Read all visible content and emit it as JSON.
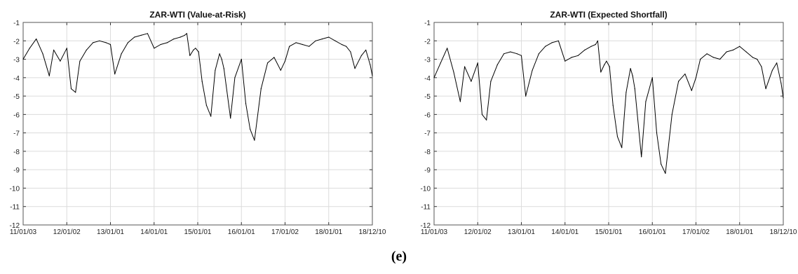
{
  "panel_label": "(e)",
  "chart_data": [
    {
      "type": "line",
      "title": "ZAR-WTI (Value-at-Risk)",
      "xlabel": "",
      "ylabel": "",
      "ylim": [
        -12,
        -1
      ],
      "yticks": [
        -1,
        -2,
        -3,
        -4,
        -5,
        -6,
        -7,
        -8,
        -9,
        -10,
        -11,
        -12
      ],
      "xtick_labels": [
        "11/01/03",
        "12/01/02",
        "13/01/01",
        "14/01/01",
        "15/01/01",
        "16/01/01",
        "17/01/02",
        "18/01/01",
        "18/12/10"
      ],
      "grid": true,
      "series": [
        {
          "x": [
            0,
            0.15,
            0.3,
            0.45,
            0.6,
            0.7,
            0.85,
            1.0,
            1.1,
            1.2,
            1.3,
            1.45,
            1.6,
            1.75,
            1.9,
            2.0,
            2.1,
            2.25,
            2.4,
            2.55,
            2.7,
            2.85,
            3.0,
            3.15,
            3.3,
            3.45,
            3.6,
            3.7,
            3.75,
            3.82,
            3.9,
            3.95,
            4.02,
            4.1,
            4.2,
            4.3,
            4.4,
            4.5,
            4.55,
            4.6,
            4.75,
            4.85,
            5.0,
            5.1,
            5.2,
            5.3,
            5.45,
            5.6,
            5.75,
            5.9,
            6.0,
            6.1,
            6.25,
            6.4,
            6.55,
            6.7,
            6.85,
            7.0,
            7.15,
            7.3,
            7.4,
            7.5,
            7.6,
            7.75,
            7.85,
            7.95,
            8.0
          ],
          "y": [
            -3.0,
            -2.4,
            -1.9,
            -2.7,
            -3.9,
            -2.5,
            -3.1,
            -2.4,
            -4.6,
            -4.8,
            -3.1,
            -2.5,
            -2.1,
            -2.0,
            -2.1,
            -2.2,
            -3.8,
            -2.7,
            -2.1,
            -1.8,
            -1.7,
            -1.6,
            -2.4,
            -2.2,
            -2.1,
            -1.9,
            -1.8,
            -1.7,
            -1.6,
            -2.8,
            -2.5,
            -2.4,
            -2.6,
            -4.2,
            -5.5,
            -6.1,
            -3.6,
            -2.7,
            -3.0,
            -3.5,
            -6.2,
            -4.0,
            -3.0,
            -5.4,
            -6.8,
            -7.4,
            -4.6,
            -3.2,
            -2.9,
            -3.6,
            -3.1,
            -2.3,
            -2.1,
            -2.2,
            -2.3,
            -2.0,
            -1.9,
            -1.8,
            -2.0,
            -2.2,
            -2.3,
            -2.6,
            -3.5,
            -2.8,
            -2.5,
            -3.3,
            -3.9
          ]
        }
      ]
    },
    {
      "type": "line",
      "title": "ZAR-WTI (Expected Shortfall)",
      "xlabel": "",
      "ylabel": "",
      "ylim": [
        -12,
        -1
      ],
      "yticks": [
        -1,
        -2,
        -3,
        -4,
        -5,
        -6,
        -7,
        -8,
        -9,
        -10,
        -11,
        -12
      ],
      "xtick_labels": [
        "11/01/03",
        "12/01/02",
        "13/01/01",
        "14/01/01",
        "15/01/01",
        "16/01/01",
        "17/01/02",
        "18/01/01",
        "18/12/10"
      ],
      "grid": true,
      "series": [
        {
          "x": [
            0,
            0.15,
            0.3,
            0.45,
            0.6,
            0.7,
            0.85,
            1.0,
            1.1,
            1.2,
            1.3,
            1.45,
            1.6,
            1.75,
            1.9,
            2.0,
            2.1,
            2.25,
            2.4,
            2.55,
            2.7,
            2.85,
            3.0,
            3.15,
            3.3,
            3.45,
            3.6,
            3.7,
            3.75,
            3.82,
            3.9,
            3.95,
            4.02,
            4.1,
            4.2,
            4.3,
            4.4,
            4.5,
            4.55,
            4.6,
            4.75,
            4.85,
            5.0,
            5.1,
            5.2,
            5.3,
            5.45,
            5.6,
            5.75,
            5.9,
            6.0,
            6.1,
            6.25,
            6.4,
            6.55,
            6.7,
            6.85,
            7.0,
            7.15,
            7.3,
            7.4,
            7.5,
            7.6,
            7.75,
            7.85,
            7.95,
            8.0
          ],
          "y": [
            -4.0,
            -3.2,
            -2.4,
            -3.7,
            -5.3,
            -3.4,
            -4.2,
            -3.2,
            -6.0,
            -6.3,
            -4.2,
            -3.3,
            -2.7,
            -2.6,
            -2.7,
            -2.8,
            -5.0,
            -3.6,
            -2.7,
            -2.3,
            -2.1,
            -2.0,
            -3.1,
            -2.9,
            -2.8,
            -2.5,
            -2.3,
            -2.2,
            -2.0,
            -3.7,
            -3.3,
            -3.1,
            -3.4,
            -5.5,
            -7.2,
            -7.8,
            -4.8,
            -3.5,
            -3.9,
            -4.6,
            -8.3,
            -5.3,
            -4.0,
            -7.0,
            -8.7,
            -9.2,
            -6.0,
            -4.2,
            -3.8,
            -4.7,
            -4.0,
            -3.0,
            -2.7,
            -2.9,
            -3.0,
            -2.6,
            -2.5,
            -2.3,
            -2.6,
            -2.9,
            -3.0,
            -3.4,
            -4.6,
            -3.6,
            -3.2,
            -4.3,
            -5.1
          ]
        }
      ]
    }
  ]
}
